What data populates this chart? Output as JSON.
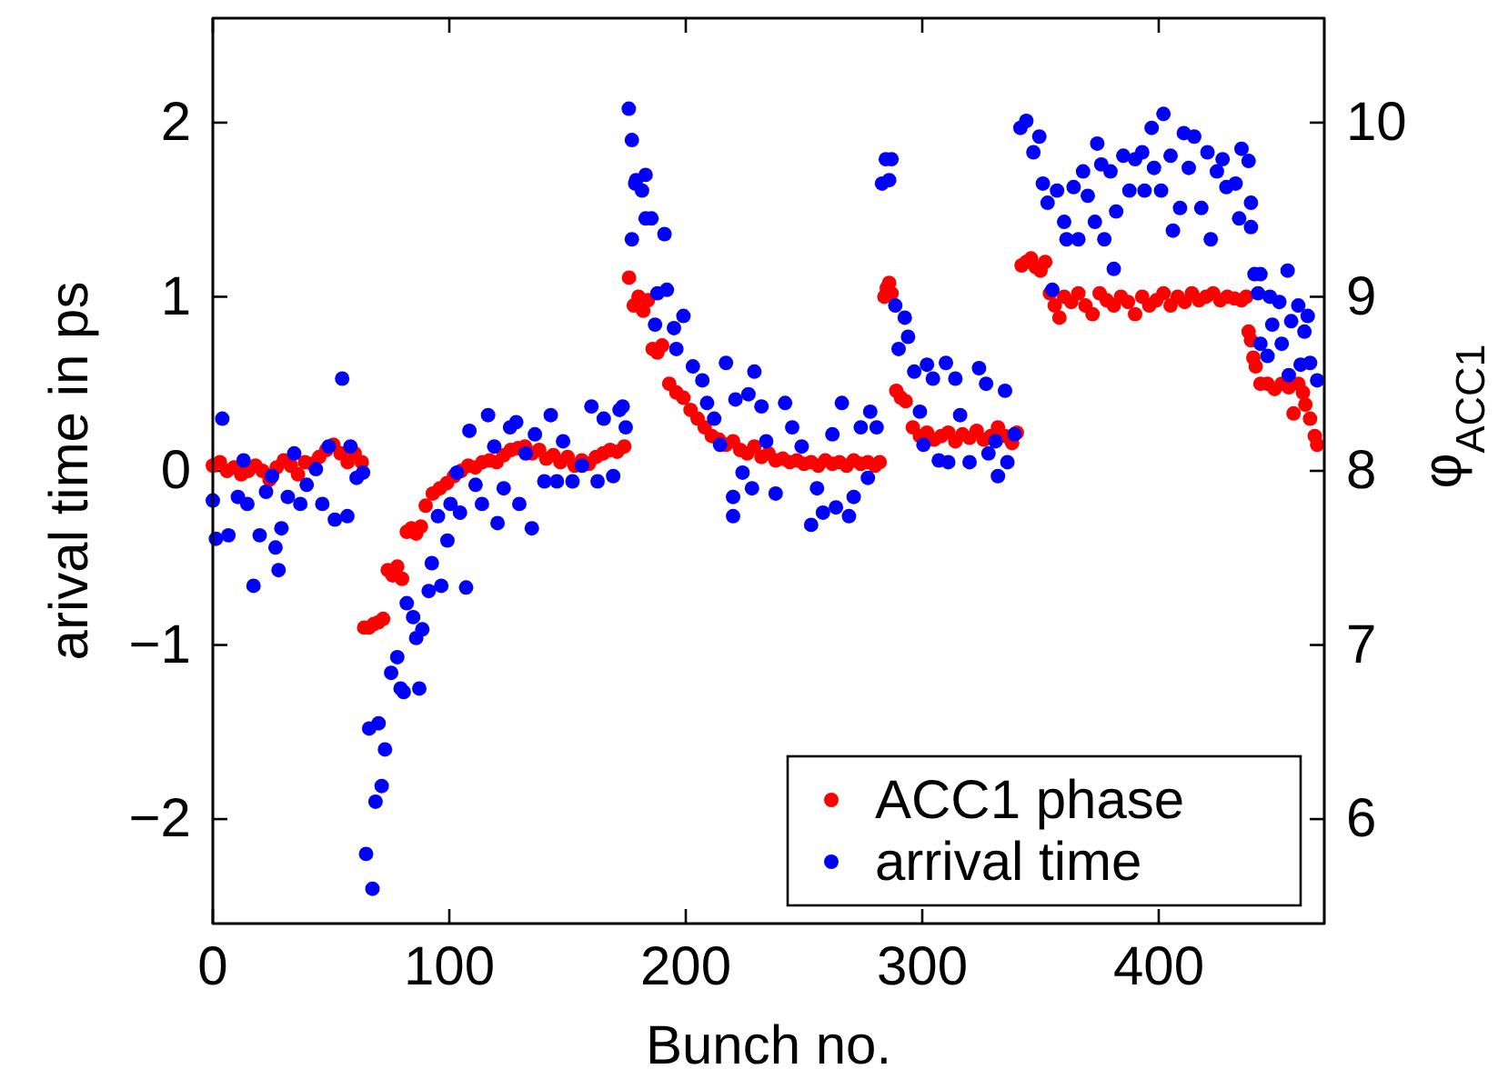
{
  "chart_data": {
    "type": "scatter",
    "xlabel": "Bunch no.",
    "ylabel": "arival time in ps",
    "y2label": "φ$_{ACC1}$",
    "xlim": [
      0,
      470
    ],
    "xticks": [
      0,
      100,
      200,
      300,
      400
    ],
    "ylim": [
      -2.6,
      2.6
    ],
    "yticks": [
      -2,
      -1,
      0,
      1,
      2
    ],
    "y2lim": [
      5.4,
      10.6
    ],
    "y2ticks": [
      6,
      7,
      8,
      9,
      10
    ],
    "legend": "bottom right",
    "marker": "circle",
    "grid": false,
    "series": [
      {
        "name": "ACC1 phase",
        "color": "#ff0000",
        "axis": "y2",
        "x": [
          0,
          3,
          6,
          9,
          12,
          15,
          18,
          21,
          24,
          27,
          30,
          33,
          36,
          39,
          42,
          45,
          48,
          51,
          54,
          57,
          60,
          63,
          64,
          66,
          68,
          70,
          72,
          74,
          76,
          78,
          80,
          82,
          84,
          86,
          88,
          90,
          93,
          96,
          99,
          102,
          105,
          108,
          111,
          114,
          117,
          120,
          123,
          126,
          129,
          132,
          135,
          138,
          141,
          144,
          147,
          150,
          153,
          156,
          159,
          162,
          165,
          168,
          171,
          174,
          176,
          178,
          180,
          182,
          184,
          186,
          188,
          190,
          193,
          196,
          199,
          202,
          205,
          208,
          211,
          214,
          217,
          220,
          223,
          226,
          229,
          232,
          235,
          238,
          241,
          244,
          247,
          250,
          253,
          256,
          259,
          262,
          265,
          268,
          271,
          274,
          277,
          280,
          282,
          284,
          285,
          286,
          287,
          289,
          291,
          293,
          296,
          299,
          302,
          305,
          308,
          311,
          314,
          317,
          320,
          323,
          326,
          329,
          332,
          335,
          338,
          340,
          342,
          344,
          346,
          348,
          350,
          352,
          354,
          356,
          358,
          360,
          363,
          366,
          369,
          372,
          375,
          378,
          381,
          384,
          387,
          390,
          393,
          396,
          399,
          402,
          405,
          408,
          411,
          414,
          417,
          420,
          423,
          426,
          429,
          432,
          435,
          437,
          438,
          439,
          440,
          441,
          443,
          446,
          449,
          452,
          455,
          457,
          459,
          461,
          462,
          464,
          466,
          467
        ],
        "values": [
          8.03,
          8.05,
          8.0,
          8.02,
          7.98,
          8.0,
          8.03,
          8.0,
          7.95,
          8.02,
          8.06,
          8.03,
          7.98,
          8.05,
          8.04,
          8.08,
          8.12,
          8.15,
          8.1,
          8.05,
          8.1,
          8.05,
          7.1,
          7.1,
          7.12,
          7.13,
          7.15,
          7.43,
          7.4,
          7.45,
          7.38,
          7.65,
          7.67,
          7.64,
          7.68,
          7.8,
          7.87,
          7.9,
          7.93,
          7.97,
          8.0,
          8.03,
          8.02,
          8.05,
          8.06,
          8.05,
          8.09,
          8.12,
          8.13,
          8.14,
          8.1,
          8.12,
          8.07,
          8.09,
          8.05,
          8.08,
          8.03,
          8.06,
          8.04,
          8.08,
          8.1,
          8.12,
          8.11,
          8.14,
          9.11,
          8.95,
          9.0,
          8.92,
          8.98,
          8.7,
          8.68,
          8.72,
          8.5,
          8.45,
          8.42,
          8.35,
          8.3,
          8.25,
          8.2,
          8.18,
          8.15,
          8.17,
          8.12,
          8.1,
          8.14,
          8.08,
          8.1,
          8.06,
          8.07,
          8.05,
          8.06,
          8.04,
          8.05,
          8.03,
          8.06,
          8.04,
          8.05,
          8.03,
          8.06,
          8.04,
          8.05,
          8.03,
          8.05,
          9.0,
          9.05,
          9.08,
          9.02,
          8.46,
          8.42,
          8.4,
          8.25,
          8.2,
          8.22,
          8.18,
          8.2,
          8.22,
          8.17,
          8.21,
          8.19,
          8.23,
          8.18,
          8.2,
          8.25,
          8.2,
          8.16,
          8.22,
          9.18,
          9.2,
          9.22,
          9.17,
          9.15,
          9.2,
          9.02,
          8.95,
          8.88,
          9.0,
          8.97,
          9.02,
          8.95,
          8.9,
          9.02,
          8.98,
          8.95,
          9.0,
          8.97,
          8.9,
          9.0,
          8.95,
          8.98,
          9.02,
          8.95,
          9.0,
          8.97,
          9.02,
          8.98,
          9.0,
          9.02,
          8.98,
          9.0,
          8.99,
          8.98,
          9.0,
          8.8,
          8.75,
          8.65,
          8.6,
          8.5,
          8.5,
          8.47,
          8.5,
          8.48,
          8.33,
          8.5,
          8.45,
          8.38,
          8.3,
          8.2,
          8.15
        ]
      },
      {
        "name": "arrival time",
        "color": "#0000ff",
        "x": [
          0,
          1.3,
          4,
          6.6,
          10.6,
          13,
          14.6,
          17.2,
          19.8,
          22.5,
          25,
          26.5,
          27.8,
          29,
          31.7,
          34.4,
          37,
          39.7,
          43.6,
          46.3,
          49,
          51.6,
          54.7,
          56.9,
          58.2,
          60.8,
          63.5,
          64.8,
          66.1,
          67.5,
          68.8,
          70.1,
          71.4,
          72.8,
          75.4,
          78,
          79.4,
          80.7,
          82,
          84.7,
          86,
          87.3,
          88.6,
          91.3,
          92.6,
          95.2,
          96.6,
          99.2,
          100.5,
          103.2,
          104.5,
          107.1,
          108.5,
          111.1,
          113.8,
          116.4,
          119,
          120.4,
          123,
          125.7,
          128.3,
          129.6,
          132.3,
          134.9,
          136.2,
          140.2,
          142.9,
          145.5,
          148.1,
          152.1,
          156.1,
          160.1,
          162.7,
          165.3,
          169.3,
          172,
          173.3,
          174.6,
          175.9,
          177.2,
          177.2,
          178.6,
          179,
          181.5,
          183,
          183,
          185.5,
          191,
          188,
          192,
          187,
          195,
          199,
          196,
          203,
          207,
          209,
          212,
          214.5,
          217,
          220,
          220,
          221,
          224,
          226.5,
          228,
          229,
          232,
          234,
          238,
          242,
          245,
          249,
          253,
          255.5,
          258,
          262,
          263.5,
          266,
          269,
          271,
          274,
          277,
          278,
          280.7,
          283,
          284.6,
          286,
          287,
          288.6,
          290,
          292.6,
          294,
          296.6,
          299,
          300.5,
          302,
          304.5,
          307,
          310,
          311,
          314,
          316,
          320,
          324,
          327,
          328,
          331,
          332,
          335,
          336,
          339,
          341.5,
          344,
          347,
          349.5,
          351,
          353,
          355,
          357,
          360,
          361,
          364,
          366,
          368,
          370,
          373,
          374,
          375.7,
          377,
          379.6,
          381,
          382,
          385,
          387.6,
          390,
          393,
          394,
          397,
          398,
          401,
          402,
          405,
          406,
          409,
          410.6,
          412.7,
          415,
          418,
          420.6,
          422,
          424.6,
          427,
          428.6,
          432.5,
          434,
          435,
          438,
          439,
          439,
          440.5,
          442,
          443,
          443,
          446,
          447,
          448,
          451,
          452,
          454.5,
          455,
          456,
          459,
          460,
          461.6,
          463,
          464,
          467
        ],
        "values": [
          -0.17,
          -0.39,
          0.3,
          -0.37,
          -0.15,
          0.06,
          -0.19,
          -0.66,
          -0.37,
          -0.12,
          -0.03,
          -0.44,
          -0.57,
          -0.33,
          -0.15,
          0.1,
          -0.19,
          -0.08,
          0.01,
          -0.19,
          0.14,
          -0.28,
          0.53,
          -0.26,
          0.14,
          -0.04,
          -0.01,
          -2.2,
          -1.48,
          -2.4,
          -1.9,
          -1.45,
          -1.81,
          -1.6,
          -1.16,
          -1.07,
          -1.25,
          -1.27,
          -0.76,
          -0.84,
          -0.96,
          -1.25,
          -0.91,
          -0.69,
          -0.53,
          -0.26,
          -0.66,
          -0.4,
          -0.19,
          -0.01,
          -0.24,
          -0.67,
          0.23,
          -0.08,
          -0.19,
          0.32,
          0.14,
          -0.3,
          -0.1,
          0.25,
          0.28,
          -0.19,
          0.1,
          -0.33,
          0.21,
          -0.06,
          0.32,
          -0.06,
          0.17,
          -0.06,
          0.03,
          0.37,
          -0.06,
          0.3,
          -0.03,
          0.35,
          0.37,
          0.25,
          2.08,
          1.9,
          1.33,
          1.65,
          1.67,
          1.61,
          1.7,
          1.45,
          1.45,
          1.36,
          1.02,
          1.04,
          0.84,
          0.82,
          0.89,
          0.7,
          0.6,
          0.52,
          0.39,
          0.3,
          0.15,
          0.62,
          -0.15,
          -0.26,
          0.41,
          -0.01,
          0.44,
          -0.1,
          0.57,
          0.37,
          0.17,
          -0.13,
          0.39,
          0.25,
          0.14,
          -0.31,
          -0.1,
          -0.24,
          0.21,
          -0.21,
          0.39,
          -0.26,
          -0.15,
          0.25,
          -0.04,
          0.34,
          0.25,
          1.65,
          1.79,
          1.67,
          1.79,
          0.95,
          0.7,
          0.88,
          0.77,
          0.57,
          0.34,
          0.15,
          0.61,
          0.53,
          0.06,
          0.62,
          0.05,
          0.53,
          0.32,
          0.05,
          0.59,
          0.5,
          0.1,
          0.17,
          -0.03,
          0.46,
          0.05,
          0.21,
          1.97,
          2.01,
          1.83,
          1.92,
          1.65,
          1.54,
          1.04,
          1.61,
          1.43,
          1.33,
          1.63,
          1.33,
          1.72,
          1.58,
          1.43,
          1.88,
          1.76,
          1.33,
          1.72,
          1.16,
          1.49,
          1.81,
          1.61,
          1.79,
          1.83,
          1.61,
          1.97,
          1.74,
          1.61,
          2.05,
          1.81,
          1.38,
          1.51,
          1.94,
          1.74,
          1.92,
          1.51,
          1.83,
          1.33,
          1.72,
          1.79,
          1.63,
          1.65,
          1.45,
          1.85,
          1.78,
          1.54,
          1.4,
          1.13,
          1.02,
          1.13,
          0.73,
          0.66,
          1.0,
          0.84,
          0.97,
          0.73,
          1.15,
          0.55,
          0.86,
          0.95,
          0.61,
          0.8,
          0.89,
          0.62,
          0.52
        ]
      }
    ]
  }
}
